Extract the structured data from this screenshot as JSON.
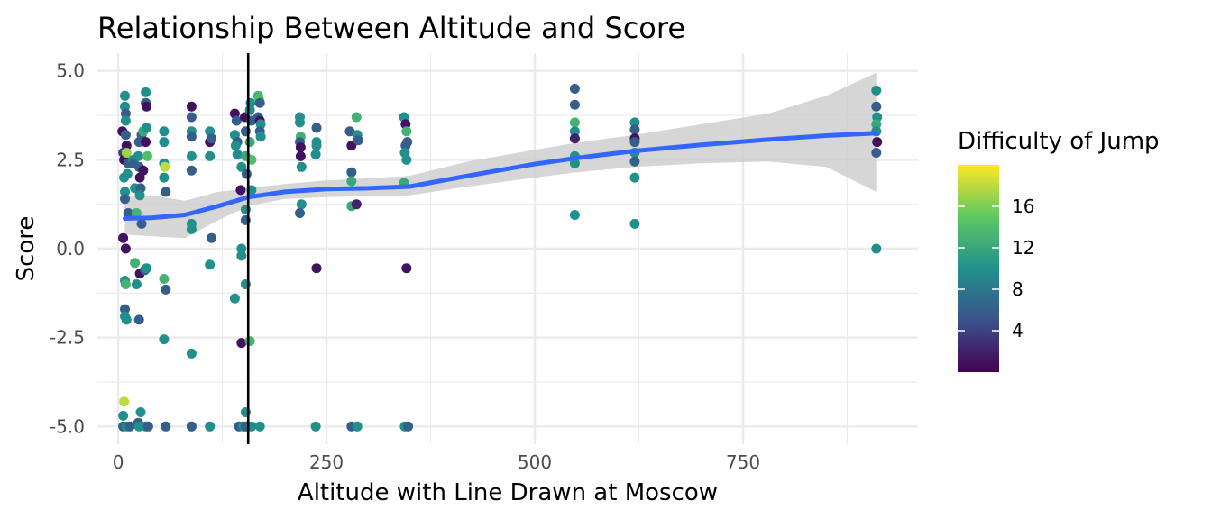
{
  "chart_data": {
    "type": "scatter",
    "title": "Relationship Between Altitude and Score",
    "xlabel": "Altitude with Line Drawn at Moscow",
    "ylabel": "Score",
    "xlim": [
      -25,
      960
    ],
    "ylim": [
      -5.5,
      5.5
    ],
    "x_ticks": [
      0,
      250,
      500,
      750
    ],
    "x_tick_labels": [
      "0",
      "250",
      "500",
      "750"
    ],
    "y_ticks": [
      5,
      2.5,
      0,
      -2.5,
      -5
    ],
    "y_tick_labels": [
      "5.0",
      "2.5",
      "0.0",
      "-2.5",
      "-5.0"
    ],
    "grid": true,
    "vline": {
      "x": 156
    },
    "colors": {
      "viridis": [
        "#440154",
        "#3b528b",
        "#21908c",
        "#5dc863",
        "#fde725"
      ],
      "smooth_line": "#3366ff",
      "ribbon": "#cccccc",
      "vline": "#000000",
      "grid": "#ebebeb"
    },
    "legend": {
      "title": "Difficulty of Jump",
      "position": "right",
      "labels": [
        "4",
        "8",
        "12",
        "16"
      ],
      "values": [
        4,
        8,
        12,
        16
      ],
      "range": [
        0,
        20
      ]
    },
    "smooth": {
      "x": [
        8,
        40,
        80,
        120,
        156,
        200,
        250,
        300,
        350,
        420,
        500,
        550,
        620,
        700,
        780,
        850,
        910
      ],
      "y": [
        0.85,
        0.87,
        0.95,
        1.2,
        1.45,
        1.6,
        1.68,
        1.7,
        1.75,
        2.05,
        2.38,
        2.55,
        2.75,
        2.92,
        3.07,
        3.18,
        3.25
      ],
      "upper": [
        1.45,
        1.5,
        1.35,
        1.6,
        1.7,
        1.82,
        1.92,
        1.98,
        2.05,
        2.45,
        2.78,
        2.98,
        3.2,
        3.5,
        3.8,
        4.3,
        4.95
      ],
      "lower": [
        0.4,
        0.35,
        0.3,
        0.8,
        1.2,
        1.4,
        1.45,
        1.48,
        1.5,
        1.75,
        2.0,
        2.15,
        2.3,
        2.4,
        2.45,
        2.3,
        1.6
      ]
    },
    "points": [
      {
        "x": 5,
        "y": 3.3,
        "d": 1
      },
      {
        "x": 6,
        "y": 2.7,
        "d": 4
      },
      {
        "x": 7,
        "y": 2.5,
        "d": 1
      },
      {
        "x": 7,
        "y": 2.0,
        "d": 10
      },
      {
        "x": 8,
        "y": 1.6,
        "d": 10
      },
      {
        "x": 8,
        "y": 1.4,
        "d": 6
      },
      {
        "x": 6,
        "y": 0.3,
        "d": 1
      },
      {
        "x": 9,
        "y": 0.0,
        "d": 1
      },
      {
        "x": 8,
        "y": 4.3,
        "d": 10
      },
      {
        "x": 8,
        "y": 4.0,
        "d": 10
      },
      {
        "x": 9,
        "y": 3.8,
        "d": 6
      },
      {
        "x": 9,
        "y": 3.6,
        "d": 10
      },
      {
        "x": 9,
        "y": 3.2,
        "d": 6
      },
      {
        "x": 10,
        "y": 2.9,
        "d": 1
      },
      {
        "x": 10,
        "y": 2.7,
        "d": 17
      },
      {
        "x": 12,
        "y": 2.4,
        "d": 6
      },
      {
        "x": 11,
        "y": 2.1,
        "d": 10
      },
      {
        "x": 12,
        "y": 1.0,
        "d": 6
      },
      {
        "x": 8,
        "y": -0.9,
        "d": 10
      },
      {
        "x": 9,
        "y": -1.0,
        "d": 13
      },
      {
        "x": 8,
        "y": -1.7,
        "d": 6
      },
      {
        "x": 8,
        "y": -1.9,
        "d": 10
      },
      {
        "x": 10,
        "y": -2.0,
        "d": 10
      },
      {
        "x": 7,
        "y": -4.3,
        "d": 18
      },
      {
        "x": 6,
        "y": -4.7,
        "d": 10
      },
      {
        "x": 6,
        "y": -5.0,
        "d": 6
      },
      {
        "x": 10,
        "y": -5.0,
        "d": 10
      },
      {
        "x": 14,
        "y": -5.0,
        "d": 6
      },
      {
        "x": 18,
        "y": 2.5,
        "d": 10
      },
      {
        "x": 19,
        "y": 2.4,
        "d": 6
      },
      {
        "x": 20,
        "y": 1.7,
        "d": 10
      },
      {
        "x": 22,
        "y": 1.0,
        "d": 13
      },
      {
        "x": 20,
        "y": -0.4,
        "d": 13
      },
      {
        "x": 22,
        "y": -1.0,
        "d": 10
      },
      {
        "x": 25,
        "y": 3.0,
        "d": 6
      },
      {
        "x": 24,
        "y": 2.6,
        "d": 10
      },
      {
        "x": 25,
        "y": 2.3,
        "d": 6
      },
      {
        "x": 26,
        "y": 2.0,
        "d": 1
      },
      {
        "x": 27,
        "y": 1.7,
        "d": 6
      },
      {
        "x": 26,
        "y": 1.5,
        "d": 10
      },
      {
        "x": 28,
        "y": 3.2,
        "d": 6
      },
      {
        "x": 28,
        "y": 0.7,
        "d": 6
      },
      {
        "x": 26,
        "y": -0.7,
        "d": 1
      },
      {
        "x": 25,
        "y": -2.0,
        "d": 6
      },
      {
        "x": 27,
        "y": -4.6,
        "d": 10
      },
      {
        "x": 24,
        "y": -4.9,
        "d": 6
      },
      {
        "x": 25,
        "y": -5.0,
        "d": 10
      },
      {
        "x": 30,
        "y": 2.2,
        "d": 1
      },
      {
        "x": 30,
        "y": 3.3,
        "d": 12
      },
      {
        "x": 33,
        "y": 4.4,
        "d": 10
      },
      {
        "x": 33,
        "y": 4.1,
        "d": 6
      },
      {
        "x": 34,
        "y": 4.0,
        "d": 1
      },
      {
        "x": 34,
        "y": 3.4,
        "d": 10
      },
      {
        "x": 33,
        "y": 3.0,
        "d": 1
      },
      {
        "x": 35,
        "y": 2.6,
        "d": 14
      },
      {
        "x": 32,
        "y": -0.6,
        "d": 6
      },
      {
        "x": 34,
        "y": -0.55,
        "d": 10
      },
      {
        "x": 33,
        "y": -5.0,
        "d": 10
      },
      {
        "x": 36,
        "y": -5.0,
        "d": 6
      },
      {
        "x": 55,
        "y": 3.3,
        "d": 10
      },
      {
        "x": 55,
        "y": 3.0,
        "d": 10
      },
      {
        "x": 55,
        "y": 2.4,
        "d": 10
      },
      {
        "x": 56,
        "y": 2.3,
        "d": 18
      },
      {
        "x": 55,
        "y": 2.0,
        "d": 10
      },
      {
        "x": 57,
        "y": 1.6,
        "d": 6
      },
      {
        "x": 55,
        "y": -0.85,
        "d": 13
      },
      {
        "x": 57,
        "y": -1.15,
        "d": 6
      },
      {
        "x": 55,
        "y": -2.55,
        "d": 10
      },
      {
        "x": 57,
        "y": -5.0,
        "d": 6
      },
      {
        "x": 88,
        "y": 4.0,
        "d": 1
      },
      {
        "x": 88,
        "y": 3.7,
        "d": 6
      },
      {
        "x": 88,
        "y": 3.3,
        "d": 10
      },
      {
        "x": 88,
        "y": 3.15,
        "d": 6
      },
      {
        "x": 88,
        "y": 2.6,
        "d": 10
      },
      {
        "x": 88,
        "y": 2.2,
        "d": 6
      },
      {
        "x": 88,
        "y": 0.7,
        "d": 10
      },
      {
        "x": 88,
        "y": 0.55,
        "d": 10
      },
      {
        "x": 88,
        "y": -2.95,
        "d": 10
      },
      {
        "x": 88,
        "y": -5.0,
        "d": 6
      },
      {
        "x": 110,
        "y": 3.3,
        "d": 10
      },
      {
        "x": 110,
        "y": 3.0,
        "d": 1
      },
      {
        "x": 112,
        "y": 3.1,
        "d": 6
      },
      {
        "x": 110,
        "y": 2.6,
        "d": 10
      },
      {
        "x": 112,
        "y": 0.3,
        "d": 6
      },
      {
        "x": 110,
        "y": -0.45,
        "d": 10
      },
      {
        "x": 110,
        "y": -5.0,
        "d": 10
      },
      {
        "x": 140,
        "y": 3.8,
        "d": 1
      },
      {
        "x": 142,
        "y": 3.6,
        "d": 6
      },
      {
        "x": 140,
        "y": 3.2,
        "d": 10
      },
      {
        "x": 143,
        "y": 3.0,
        "d": 6
      },
      {
        "x": 141,
        "y": 2.9,
        "d": 10
      },
      {
        "x": 143,
        "y": 2.65,
        "d": 10
      },
      {
        "x": 140,
        "y": -1.4,
        "d": 10
      },
      {
        "x": 145,
        "y": -5.0,
        "d": 6
      },
      {
        "x": 147,
        "y": 1.65,
        "d": 1
      },
      {
        "x": 148,
        "y": 2.3,
        "d": 10
      },
      {
        "x": 148,
        "y": 0.0,
        "d": 10
      },
      {
        "x": 148,
        "y": -0.2,
        "d": 10
      },
      {
        "x": 148,
        "y": -2.65,
        "d": 1
      },
      {
        "x": 150,
        "y": -5.0,
        "d": 10
      },
      {
        "x": 152,
        "y": 3.7,
        "d": 1
      },
      {
        "x": 153,
        "y": 3.3,
        "d": 6
      },
      {
        "x": 153,
        "y": 2.6,
        "d": 12
      },
      {
        "x": 154,
        "y": 2.1,
        "d": 6
      },
      {
        "x": 153,
        "y": 1.1,
        "d": 10
      },
      {
        "x": 153,
        "y": 0.8,
        "d": 6
      },
      {
        "x": 153,
        "y": -1.0,
        "d": 10
      },
      {
        "x": 153,
        "y": -4.6,
        "d": 10
      },
      {
        "x": 153,
        "y": -5.0,
        "d": 6
      },
      {
        "x": 159,
        "y": 4.1,
        "d": 10
      },
      {
        "x": 158,
        "y": 3.9,
        "d": 10
      },
      {
        "x": 160,
        "y": 3.6,
        "d": 6
      },
      {
        "x": 158,
        "y": 3.0,
        "d": 12
      },
      {
        "x": 160,
        "y": 2.5,
        "d": 14
      },
      {
        "x": 160,
        "y": 1.65,
        "d": 10
      },
      {
        "x": 158,
        "y": -2.6,
        "d": 13
      },
      {
        "x": 160,
        "y": -5.0,
        "d": 10
      },
      {
        "x": 168,
        "y": 4.3,
        "d": 13
      },
      {
        "x": 169,
        "y": 4.2,
        "d": 14
      },
      {
        "x": 170,
        "y": 4.1,
        "d": 6
      },
      {
        "x": 168,
        "y": 3.7,
        "d": 6
      },
      {
        "x": 170,
        "y": 3.6,
        "d": 1
      },
      {
        "x": 171,
        "y": 3.5,
        "d": 10
      },
      {
        "x": 170,
        "y": 3.3,
        "d": 6
      },
      {
        "x": 171,
        "y": 3.15,
        "d": 10
      },
      {
        "x": 170,
        "y": -5.0,
        "d": 10
      },
      {
        "x": 218,
        "y": 3.7,
        "d": 10
      },
      {
        "x": 218,
        "y": 3.55,
        "d": 10
      },
      {
        "x": 219,
        "y": 3.15,
        "d": 13
      },
      {
        "x": 218,
        "y": 3.0,
        "d": 6
      },
      {
        "x": 219,
        "y": 2.85,
        "d": 1
      },
      {
        "x": 219,
        "y": 2.6,
        "d": 1
      },
      {
        "x": 220,
        "y": 2.3,
        "d": 10
      },
      {
        "x": 220,
        "y": 1.25,
        "d": 10
      },
      {
        "x": 218,
        "y": 1.0,
        "d": 6
      },
      {
        "x": 238,
        "y": 3.4,
        "d": 6
      },
      {
        "x": 238,
        "y": 3.0,
        "d": 10
      },
      {
        "x": 238,
        "y": 2.9,
        "d": 10
      },
      {
        "x": 237,
        "y": 2.65,
        "d": 10
      },
      {
        "x": 238,
        "y": -0.55,
        "d": 1
      },
      {
        "x": 237,
        "y": -5.0,
        "d": 10
      },
      {
        "x": 278,
        "y": 3.3,
        "d": 6
      },
      {
        "x": 280,
        "y": 2.9,
        "d": 1
      },
      {
        "x": 280,
        "y": 2.15,
        "d": 6
      },
      {
        "x": 280,
        "y": 1.9,
        "d": 12
      },
      {
        "x": 280,
        "y": 1.2,
        "d": 12
      },
      {
        "x": 286,
        "y": 1.25,
        "d": 2
      },
      {
        "x": 286,
        "y": 3.7,
        "d": 13
      },
      {
        "x": 287,
        "y": 3.2,
        "d": 10
      },
      {
        "x": 288,
        "y": 3.05,
        "d": 6
      },
      {
        "x": 280,
        "y": -5.0,
        "d": 6
      },
      {
        "x": 287,
        "y": -5.0,
        "d": 10
      },
      {
        "x": 343,
        "y": 3.7,
        "d": 10
      },
      {
        "x": 345,
        "y": 3.5,
        "d": 1
      },
      {
        "x": 346,
        "y": 3.3,
        "d": 13
      },
      {
        "x": 347,
        "y": 3.0,
        "d": 6
      },
      {
        "x": 345,
        "y": 2.9,
        "d": 6
      },
      {
        "x": 344,
        "y": 2.7,
        "d": 10
      },
      {
        "x": 346,
        "y": 2.5,
        "d": 10
      },
      {
        "x": 343,
        "y": 1.85,
        "d": 12
      },
      {
        "x": 346,
        "y": -0.55,
        "d": 1
      },
      {
        "x": 344,
        "y": -5.0,
        "d": 10
      },
      {
        "x": 348,
        "y": -5.0,
        "d": 6
      },
      {
        "x": 548,
        "y": 4.5,
        "d": 6
      },
      {
        "x": 548,
        "y": 4.05,
        "d": 6
      },
      {
        "x": 548,
        "y": 3.55,
        "d": 13
      },
      {
        "x": 548,
        "y": 3.3,
        "d": 10
      },
      {
        "x": 548,
        "y": 3.1,
        "d": 2
      },
      {
        "x": 548,
        "y": 2.6,
        "d": 10
      },
      {
        "x": 548,
        "y": 2.4,
        "d": 10
      },
      {
        "x": 548,
        "y": 0.95,
        "d": 10
      },
      {
        "x": 620,
        "y": 3.55,
        "d": 10
      },
      {
        "x": 620,
        "y": 3.35,
        "d": 6
      },
      {
        "x": 620,
        "y": 3.1,
        "d": 1
      },
      {
        "x": 620,
        "y": 3.0,
        "d": 6
      },
      {
        "x": 620,
        "y": 2.7,
        "d": 10
      },
      {
        "x": 620,
        "y": 2.45,
        "d": 6
      },
      {
        "x": 620,
        "y": 2.0,
        "d": 10
      },
      {
        "x": 620,
        "y": 0.7,
        "d": 10
      },
      {
        "x": 910,
        "y": 4.45,
        "d": 10
      },
      {
        "x": 910,
        "y": 4.0,
        "d": 6
      },
      {
        "x": 911,
        "y": 3.7,
        "d": 10
      },
      {
        "x": 910,
        "y": 3.5,
        "d": 12
      },
      {
        "x": 910,
        "y": 3.3,
        "d": 10
      },
      {
        "x": 911,
        "y": 3.0,
        "d": 1
      },
      {
        "x": 910,
        "y": 2.7,
        "d": 6
      },
      {
        "x": 910,
        "y": 0.0,
        "d": 10
      }
    ]
  }
}
